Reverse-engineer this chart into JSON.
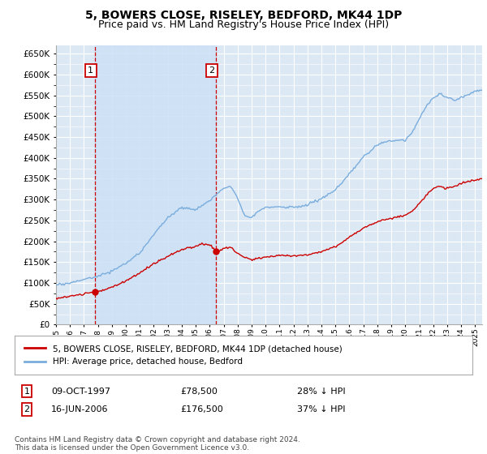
{
  "title": "5, BOWERS CLOSE, RISELEY, BEDFORD, MK44 1DP",
  "subtitle": "Price paid vs. HM Land Registry's House Price Index (HPI)",
  "title_fontsize": 10,
  "subtitle_fontsize": 9,
  "ylim": [
    0,
    670000
  ],
  "bg_color": "#dce9f5",
  "grid_color": "#ffffff",
  "sale1_date": 1997.78,
  "sale1_price": 78500,
  "sale1_label": "1",
  "sale2_date": 2006.46,
  "sale2_price": 176500,
  "sale2_label": "2",
  "red_line_color": "#cc0000",
  "blue_line_color": "#7aaddd",
  "shade_color": "#cce0f5",
  "legend_label_red": "5, BOWERS CLOSE, RISELEY, BEDFORD, MK44 1DP (detached house)",
  "legend_label_blue": "HPI: Average price, detached house, Bedford",
  "table_row1": [
    "1",
    "09-OCT-1997",
    "£78,500",
    "28% ↓ HPI"
  ],
  "table_row2": [
    "2",
    "16-JUN-2006",
    "£176,500",
    "37% ↓ HPI"
  ],
  "footnote": "Contains HM Land Registry data © Crown copyright and database right 2024.\nThis data is licensed under the Open Government Licence v3.0.",
  "xmin": 1995,
  "xmax": 2025.5
}
